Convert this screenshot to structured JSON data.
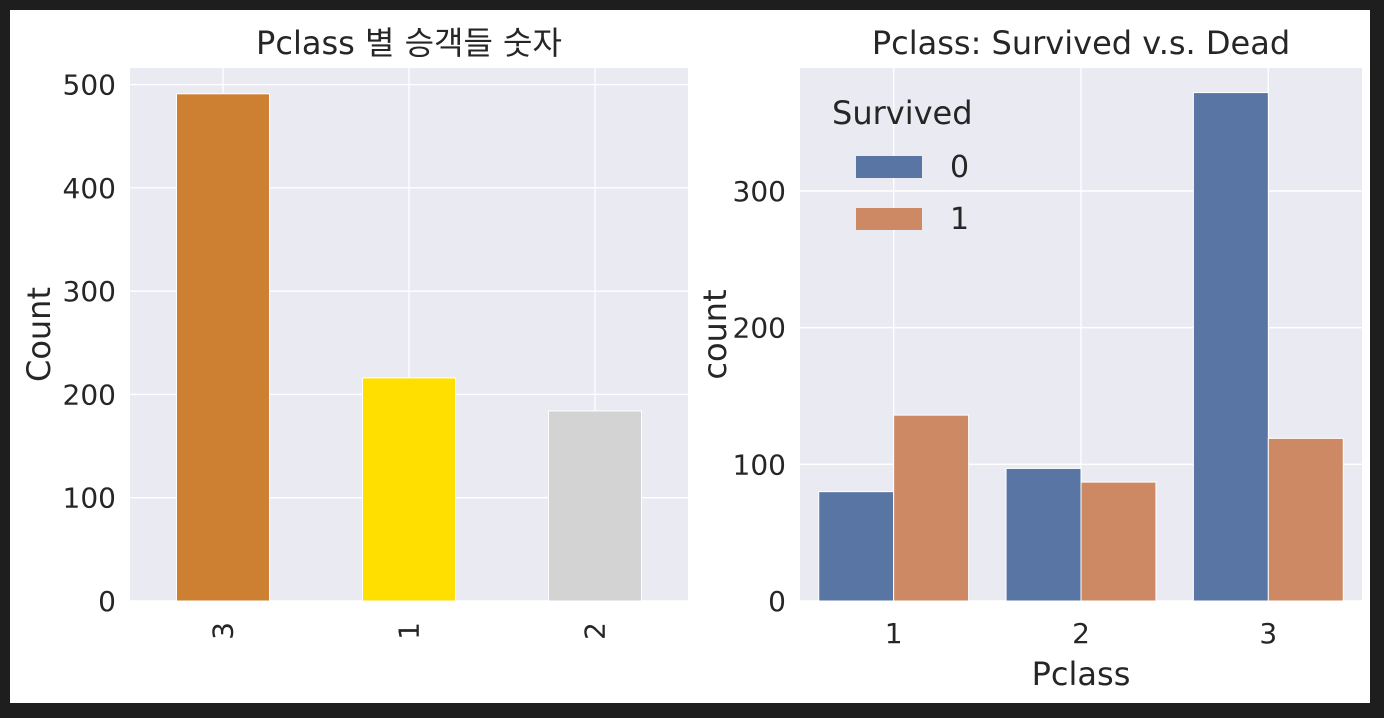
{
  "chart_data": [
    {
      "type": "bar",
      "title": "Pclass 별 승객들 숫자",
      "xlabel": "",
      "ylabel": "Count",
      "categories": [
        "3",
        "1",
        "2"
      ],
      "values": [
        491,
        216,
        184
      ],
      "colors": [
        "#cd7f32",
        "#ffdf00",
        "#d3d3d3"
      ],
      "ylim": [
        0,
        516
      ],
      "yticks": [
        0,
        100,
        200,
        300,
        400,
        500
      ],
      "grid": true,
      "x_tick_rotation": 90
    },
    {
      "type": "bar",
      "title": "Pclass: Survived v.s. Dead",
      "xlabel": "Pclass",
      "ylabel": "count",
      "categories": [
        "1",
        "2",
        "3"
      ],
      "legend": {
        "title": "Survived",
        "placement": "top-left"
      },
      "series": [
        {
          "name": "0",
          "values": [
            80,
            97,
            372
          ],
          "color": "#5975a4"
        },
        {
          "name": "1",
          "values": [
            136,
            87,
            119
          ],
          "color": "#cc8963"
        }
      ],
      "ylim": [
        0,
        390
      ],
      "yticks": [
        0,
        100,
        200,
        300
      ],
      "grid": true
    }
  ]
}
